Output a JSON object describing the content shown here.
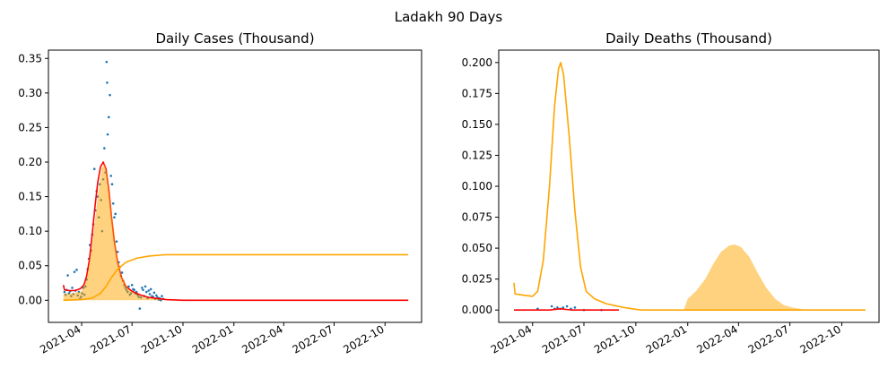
{
  "figure": {
    "suptitle": "Ladakh 90 Days"
  },
  "colors": {
    "scatter": "#1f77b4",
    "fit": "#ff0000",
    "model": "#ffa500",
    "fill": "#ffa500"
  },
  "chart_data": [
    {
      "type": "line",
      "title": "Daily Cases (Thousand)",
      "xlabel": "",
      "ylabel": "",
      "x_axis": "date",
      "xlim": [
        "2021-01-31",
        "2022-12-06"
      ],
      "ylim": [
        -0.032,
        0.362
      ],
      "x_ticks": [
        "2021-04-01",
        "2021-07-01",
        "2021-10-01",
        "2022-01-01",
        "2022-04-01",
        "2022-07-01",
        "2022-10-01"
      ],
      "x_tick_labels": [
        "2021-04",
        "2021-07",
        "2021-10",
        "2022-01",
        "2022-04",
        "2022-07",
        "2022-10"
      ],
      "y_ticks": [
        0.0,
        0.05,
        0.1,
        0.15,
        0.2,
        0.25,
        0.3,
        0.35
      ],
      "y_tick_labels": [
        "0.00",
        "0.05",
        "0.10",
        "0.15",
        "0.20",
        "0.25",
        "0.30",
        "0.35"
      ],
      "grid": false,
      "series": [
        {
          "kind": "scatter",
          "color": "#1f77b4",
          "points": [
            [
              "2021-03-01",
              0.012
            ],
            [
              "2021-03-03",
              0.008
            ],
            [
              "2021-03-05",
              0.015
            ],
            [
              "2021-03-07",
              0.036
            ],
            [
              "2021-03-09",
              0.01
            ],
            [
              "2021-03-11",
              0.013
            ],
            [
              "2021-03-13",
              0.006
            ],
            [
              "2021-03-15",
              0.018
            ],
            [
              "2021-03-17",
              0.009
            ],
            [
              "2021-03-19",
              0.041
            ],
            [
              "2021-03-21",
              0.014
            ],
            [
              "2021-03-23",
              0.044
            ],
            [
              "2021-03-25",
              0.007
            ],
            [
              "2021-03-27",
              0.012
            ],
            [
              "2021-03-29",
              0.002
            ],
            [
              "2021-03-31",
              0.005
            ],
            [
              "2021-04-02",
              0.01
            ],
            [
              "2021-04-04",
              0.018
            ],
            [
              "2021-04-06",
              0.008
            ],
            [
              "2021-04-08",
              0.02
            ],
            [
              "2021-04-10",
              0.03
            ],
            [
              "2021-04-12",
              0.045
            ],
            [
              "2021-04-14",
              0.06
            ],
            [
              "2021-04-16",
              0.08
            ],
            [
              "2021-04-18",
              0.072
            ],
            [
              "2021-04-20",
              0.095
            ],
            [
              "2021-04-22",
              0.11
            ],
            [
              "2021-04-24",
              0.19
            ],
            [
              "2021-04-26",
              0.13
            ],
            [
              "2021-04-28",
              0.158
            ],
            [
              "2021-04-30",
              0.15
            ],
            [
              "2021-05-02",
              0.12
            ],
            [
              "2021-05-04",
              0.168
            ],
            [
              "2021-05-06",
              0.145
            ],
            [
              "2021-05-08",
              0.1
            ],
            [
              "2021-05-10",
              0.175
            ],
            [
              "2021-05-12",
              0.22
            ],
            [
              "2021-05-14",
              0.185
            ],
            [
              "2021-05-16",
              0.345
            ],
            [
              "2021-05-17",
              0.315
            ],
            [
              "2021-05-18",
              0.24
            ],
            [
              "2021-05-20",
              0.265
            ],
            [
              "2021-05-22",
              0.297
            ],
            [
              "2021-05-24",
              0.18
            ],
            [
              "2021-05-26",
              0.168
            ],
            [
              "2021-05-28",
              0.14
            ],
            [
              "2021-05-30",
              0.12
            ],
            [
              "2021-06-01",
              0.125
            ],
            [
              "2021-06-03",
              0.085
            ],
            [
              "2021-06-05",
              0.07
            ],
            [
              "2021-06-07",
              0.055
            ],
            [
              "2021-06-09",
              0.048
            ],
            [
              "2021-06-11",
              0.035
            ],
            [
              "2021-06-13",
              0.04
            ],
            [
              "2021-06-15",
              0.028
            ],
            [
              "2021-06-17",
              0.022
            ],
            [
              "2021-06-19",
              0.018
            ],
            [
              "2021-06-21",
              0.015
            ],
            [
              "2021-06-23",
              0.012
            ],
            [
              "2021-06-25",
              0.02
            ],
            [
              "2021-06-27",
              0.008
            ],
            [
              "2021-06-29",
              0.01
            ],
            [
              "2021-07-01",
              0.022
            ],
            [
              "2021-07-03",
              0.016
            ],
            [
              "2021-07-05",
              0.015
            ],
            [
              "2021-07-07",
              0.01
            ],
            [
              "2021-07-09",
              0.012
            ],
            [
              "2021-07-11",
              0.008
            ],
            [
              "2021-07-13",
              0.005
            ],
            [
              "2021-07-15",
              -0.012
            ],
            [
              "2021-07-17",
              0.004
            ],
            [
              "2021-07-19",
              0.018
            ],
            [
              "2021-07-21",
              0.015
            ],
            [
              "2021-07-23",
              0.006
            ],
            [
              "2021-07-25",
              0.02
            ],
            [
              "2021-07-27",
              0.012
            ],
            [
              "2021-07-29",
              0.003
            ],
            [
              "2021-07-31",
              0.014
            ],
            [
              "2021-08-02",
              0.009
            ],
            [
              "2021-08-04",
              0.016
            ],
            [
              "2021-08-06",
              0.006
            ],
            [
              "2021-08-08",
              0.005
            ],
            [
              "2021-08-10",
              0.011
            ],
            [
              "2021-08-12",
              0.002
            ],
            [
              "2021-08-14",
              0.007
            ],
            [
              "2021-08-16",
              0.004
            ],
            [
              "2021-08-18",
              0.001
            ],
            [
              "2021-08-20",
              0.003
            ],
            [
              "2021-08-22",
              0.0
            ],
            [
              "2021-08-24",
              0.006
            ],
            [
              "2021-08-26",
              0.002
            ]
          ]
        },
        {
          "kind": "line",
          "color": "#ff0000",
          "points": [
            [
              "2021-02-27",
              0.022
            ],
            [
              "2021-03-01",
              0.015
            ],
            [
              "2021-03-10",
              0.014
            ],
            [
              "2021-03-20",
              0.014
            ],
            [
              "2021-03-30",
              0.017
            ],
            [
              "2021-04-05",
              0.022
            ],
            [
              "2021-04-10",
              0.035
            ],
            [
              "2021-04-15",
              0.058
            ],
            [
              "2021-04-20",
              0.095
            ],
            [
              "2021-04-25",
              0.135
            ],
            [
              "2021-04-30",
              0.17
            ],
            [
              "2021-05-05",
              0.193
            ],
            [
              "2021-05-10",
              0.2
            ],
            [
              "2021-05-15",
              0.19
            ],
            [
              "2021-05-20",
              0.16
            ],
            [
              "2021-05-25",
              0.12
            ],
            [
              "2021-05-30",
              0.085
            ],
            [
              "2021-06-05",
              0.055
            ],
            [
              "2021-06-12",
              0.033
            ],
            [
              "2021-06-20",
              0.02
            ],
            [
              "2021-07-01",
              0.013
            ],
            [
              "2021-07-15",
              0.008
            ],
            [
              "2021-08-01",
              0.004
            ],
            [
              "2021-09-01",
              0.001
            ],
            [
              "2021-10-01",
              0.0
            ],
            [
              "2022-11-12",
              0.0
            ]
          ]
        },
        {
          "kind": "line",
          "color": "#ffa500",
          "points": [
            [
              "2021-02-27",
              0.0
            ],
            [
              "2021-04-01",
              0.001
            ],
            [
              "2021-04-20",
              0.003
            ],
            [
              "2021-05-05",
              0.01
            ],
            [
              "2021-05-15",
              0.02
            ],
            [
              "2021-05-25",
              0.033
            ],
            [
              "2021-06-05",
              0.045
            ],
            [
              "2021-06-20",
              0.055
            ],
            [
              "2021-07-10",
              0.061
            ],
            [
              "2021-08-01",
              0.064
            ],
            [
              "2021-09-01",
              0.066
            ],
            [
              "2021-10-01",
              0.066
            ],
            [
              "2022-11-12",
              0.066
            ]
          ]
        },
        {
          "kind": "area",
          "color": "#ffa500",
          "points": [
            [
              "2021-02-27",
              0.01
            ],
            [
              "2021-03-15",
              0.01
            ],
            [
              "2021-04-01",
              0.013
            ],
            [
              "2021-04-10",
              0.03
            ],
            [
              "2021-04-20",
              0.08
            ],
            [
              "2021-04-30",
              0.15
            ],
            [
              "2021-05-07",
              0.19
            ],
            [
              "2021-05-12",
              0.198
            ],
            [
              "2021-05-17",
              0.185
            ],
            [
              "2021-05-25",
              0.13
            ],
            [
              "2021-06-03",
              0.07
            ],
            [
              "2021-06-12",
              0.035
            ],
            [
              "2021-06-25",
              0.015
            ],
            [
              "2021-07-10",
              0.008
            ],
            [
              "2021-07-25",
              0.004
            ],
            [
              "2021-08-10",
              0.002
            ],
            [
              "2021-08-28",
              0.0
            ]
          ]
        }
      ]
    },
    {
      "type": "line",
      "title": "Daily Deaths (Thousand)",
      "xlabel": "",
      "ylabel": "",
      "x_axis": "date",
      "xlim": [
        "2021-01-31",
        "2022-12-06"
      ],
      "ylim": [
        -0.01,
        0.21
      ],
      "x_ticks": [
        "2021-04-01",
        "2021-07-01",
        "2021-10-01",
        "2022-01-01",
        "2022-04-01",
        "2022-07-01",
        "2022-10-01"
      ],
      "x_tick_labels": [
        "2021-04",
        "2021-07",
        "2021-10",
        "2022-01",
        "2022-04",
        "2022-07",
        "2022-10"
      ],
      "y_ticks": [
        0.0,
        0.025,
        0.05,
        0.075,
        0.1,
        0.125,
        0.15,
        0.175,
        0.2
      ],
      "y_tick_labels": [
        "0.000",
        "0.025",
        "0.050",
        "0.075",
        "0.100",
        "0.125",
        "0.150",
        "0.175",
        "0.200"
      ],
      "grid": false,
      "series": [
        {
          "kind": "area",
          "color": "#ffa500",
          "points": [
            [
              "2021-12-25",
              0.0
            ],
            [
              "2022-01-01",
              0.009
            ],
            [
              "2022-01-15",
              0.015
            ],
            [
              "2022-02-01",
              0.025
            ],
            [
              "2022-02-15",
              0.037
            ],
            [
              "2022-03-01",
              0.047
            ],
            [
              "2022-03-15",
              0.052
            ],
            [
              "2022-03-25",
              0.053
            ],
            [
              "2022-04-05",
              0.051
            ],
            [
              "2022-04-20",
              0.043
            ],
            [
              "2022-05-05",
              0.03
            ],
            [
              "2022-05-20",
              0.018
            ],
            [
              "2022-06-05",
              0.009
            ],
            [
              "2022-06-20",
              0.004
            ],
            [
              "2022-07-05",
              0.002
            ],
            [
              "2022-08-01",
              0.0
            ]
          ]
        },
        {
          "kind": "line",
          "color": "#ffa500",
          "points": [
            [
              "2021-02-27",
              0.022
            ],
            [
              "2021-03-01",
              0.013
            ],
            [
              "2021-03-15",
              0.012
            ],
            [
              "2021-04-01",
              0.011
            ],
            [
              "2021-04-10",
              0.015
            ],
            [
              "2021-04-20",
              0.04
            ],
            [
              "2021-05-01",
              0.1
            ],
            [
              "2021-05-10",
              0.165
            ],
            [
              "2021-05-17",
              0.195
            ],
            [
              "2021-05-21",
              0.2
            ],
            [
              "2021-05-26",
              0.19
            ],
            [
              "2021-06-05",
              0.14
            ],
            [
              "2021-06-15",
              0.08
            ],
            [
              "2021-06-25",
              0.035
            ],
            [
              "2021-07-05",
              0.015
            ],
            [
              "2021-07-20",
              0.009
            ],
            [
              "2021-08-10",
              0.005
            ],
            [
              "2021-09-10",
              0.002
            ],
            [
              "2021-10-10",
              0.0
            ],
            [
              "2021-11-20",
              0.0
            ],
            [
              "2022-01-01",
              0.0
            ],
            [
              "2022-11-12",
              0.0
            ]
          ]
        },
        {
          "kind": "scatter",
          "color": "#1f77b4",
          "points": [
            [
              "2021-04-10",
              0.001
            ],
            [
              "2021-05-05",
              0.003
            ],
            [
              "2021-05-10",
              0.001
            ],
            [
              "2021-05-15",
              0.002
            ],
            [
              "2021-05-20",
              0.001
            ],
            [
              "2021-05-25",
              0.002
            ],
            [
              "2021-06-01",
              0.003
            ],
            [
              "2021-06-08",
              0.001
            ],
            [
              "2021-06-15",
              0.002
            ],
            [
              "2021-07-01",
              0.0
            ],
            [
              "2021-08-01",
              0.0
            ]
          ]
        },
        {
          "kind": "line",
          "color": "#ff0000",
          "points": [
            [
              "2021-02-27",
              0.0
            ],
            [
              "2021-05-01",
              0.0
            ],
            [
              "2021-05-20",
              0.001
            ],
            [
              "2021-06-10",
              0.0
            ],
            [
              "2021-09-01",
              0.0
            ]
          ]
        }
      ]
    }
  ]
}
